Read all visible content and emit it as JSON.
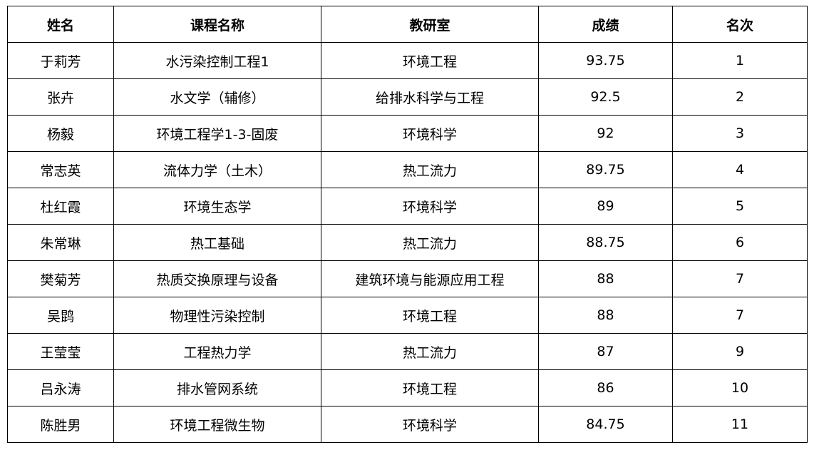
{
  "headers": [
    "姓名",
    "课程名称",
    "教研室",
    "成绩",
    "名次"
  ],
  "rows": [
    [
      "于莉芳",
      "水污染控制工程1",
      "环境工程",
      "93.75",
      "1"
    ],
    [
      "张卉",
      "水文学（辅修）",
      "给排水科学与工程",
      "92.5",
      "2"
    ],
    [
      "杨毅",
      "环境工程学1-3-固废",
      "环境科学",
      "92",
      "3"
    ],
    [
      "常志英",
      "流体力学（土木）",
      "热工流力",
      "89.75",
      "4"
    ],
    [
      "杜红霞",
      "环境生态学",
      "环境科学",
      "89",
      "5"
    ],
    [
      "朱常琳",
      "热工基础",
      "热工流力",
      "88.75",
      "6"
    ],
    [
      "樊菊芳",
      "热质交换原理与设备",
      "建筑环境与能源应用工程",
      "88",
      "7"
    ],
    [
      "吴鹍",
      "物理性污染控制",
      "环境工程",
      "88",
      "7"
    ],
    [
      "王莹莹",
      "工程热力学",
      "热工流力",
      "87",
      "9"
    ],
    [
      "吕永涛",
      "排水管网系统",
      "环境工程",
      "86",
      "10"
    ],
    [
      "陈胜男",
      "环境工程微生物",
      "环境科学",
      "84.75",
      "11"
    ]
  ]
}
